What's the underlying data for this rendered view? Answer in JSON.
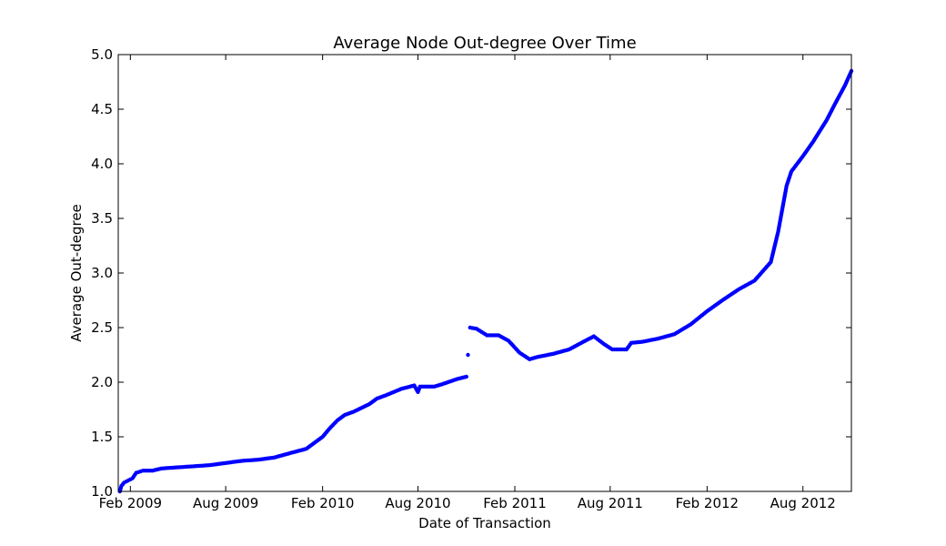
{
  "chart_data": {
    "type": "scatter",
    "title": "Average Node Out-degree Over Time",
    "xlabel": "Date of Transaction",
    "ylabel": "Average Out-degree",
    "xlim": [
      "2009-01-09",
      "2012-11-01"
    ],
    "ylim": [
      1.0,
      5.0
    ],
    "x_ticks": [
      {
        "date": "2009-02-01",
        "label": "Feb 2009"
      },
      {
        "date": "2009-08-01",
        "label": "Aug 2009"
      },
      {
        "date": "2010-02-01",
        "label": "Feb 2010"
      },
      {
        "date": "2010-08-01",
        "label": "Aug 2010"
      },
      {
        "date": "2011-02-01",
        "label": "Feb 2011"
      },
      {
        "date": "2011-08-01",
        "label": "Aug 2011"
      },
      {
        "date": "2012-02-01",
        "label": "Feb 2012"
      },
      {
        "date": "2012-08-01",
        "label": "Aug 2012"
      }
    ],
    "y_ticks": [
      "1.0",
      "1.5",
      "2.0",
      "2.5",
      "3.0",
      "3.5",
      "4.0",
      "4.5",
      "5.0"
    ],
    "grid": false,
    "marker_color": "#0000ff",
    "series": [
      {
        "points": [
          [
            "2009-01-12",
            1.0
          ],
          [
            "2009-01-15",
            1.05
          ],
          [
            "2009-01-20",
            1.08
          ],
          [
            "2009-01-28",
            1.1
          ],
          [
            "2009-02-05",
            1.12
          ],
          [
            "2009-02-12",
            1.17
          ],
          [
            "2009-02-25",
            1.19
          ],
          [
            "2009-03-15",
            1.19
          ],
          [
            "2009-04-01",
            1.21
          ],
          [
            "2009-05-01",
            1.22
          ],
          [
            "2009-06-01",
            1.23
          ],
          [
            "2009-07-01",
            1.24
          ],
          [
            "2009-08-01",
            1.26
          ],
          [
            "2009-09-01",
            1.28
          ],
          [
            "2009-10-01",
            1.29
          ],
          [
            "2009-11-01",
            1.31
          ],
          [
            "2009-12-01",
            1.35
          ],
          [
            "2010-01-01",
            1.39
          ],
          [
            "2010-02-01",
            1.5
          ],
          [
            "2010-02-15",
            1.58
          ],
          [
            "2010-03-01",
            1.65
          ],
          [
            "2010-03-15",
            1.7
          ],
          [
            "2010-04-01",
            1.73
          ],
          [
            "2010-05-01",
            1.8
          ],
          [
            "2010-05-15",
            1.85
          ],
          [
            "2010-06-01",
            1.88
          ],
          [
            "2010-07-01",
            1.94
          ],
          [
            "2010-07-25",
            1.97
          ],
          [
            "2010-08-01",
            1.91
          ],
          [
            "2010-08-05",
            1.96
          ],
          [
            "2010-09-01",
            1.96
          ],
          [
            "2010-09-15",
            1.98
          ],
          [
            "2010-10-15",
            2.03
          ],
          [
            "2010-11-01",
            2.05
          ],
          [
            "2010-11-04",
            2.25
          ],
          [
            "2010-11-08",
            2.5
          ],
          [
            "2010-11-20",
            2.49
          ],
          [
            "2010-12-10",
            2.43
          ],
          [
            "2011-01-01",
            2.43
          ],
          [
            "2011-01-20",
            2.38
          ],
          [
            "2011-02-10",
            2.27
          ],
          [
            "2011-03-01",
            2.21
          ],
          [
            "2011-03-15",
            2.23
          ],
          [
            "2011-04-15",
            2.26
          ],
          [
            "2011-05-15",
            2.3
          ],
          [
            "2011-06-15",
            2.38
          ],
          [
            "2011-07-01",
            2.42
          ],
          [
            "2011-07-20",
            2.35
          ],
          [
            "2011-08-05",
            2.3
          ],
          [
            "2011-09-01",
            2.3
          ],
          [
            "2011-09-10",
            2.36
          ],
          [
            "2011-10-01",
            2.37
          ],
          [
            "2011-11-01",
            2.4
          ],
          [
            "2011-12-01",
            2.44
          ],
          [
            "2012-01-01",
            2.53
          ],
          [
            "2012-02-01",
            2.65
          ],
          [
            "2012-03-01",
            2.75
          ],
          [
            "2012-04-01",
            2.85
          ],
          [
            "2012-05-01",
            2.93
          ],
          [
            "2012-06-01",
            3.1
          ],
          [
            "2012-06-15",
            3.38
          ],
          [
            "2012-07-01",
            3.8
          ],
          [
            "2012-07-10",
            3.93
          ],
          [
            "2012-08-01",
            4.07
          ],
          [
            "2012-08-20",
            4.2
          ],
          [
            "2012-09-15",
            4.4
          ],
          [
            "2012-10-01",
            4.55
          ],
          [
            "2012-10-20",
            4.72
          ],
          [
            "2012-11-01",
            4.85
          ]
        ]
      }
    ]
  }
}
